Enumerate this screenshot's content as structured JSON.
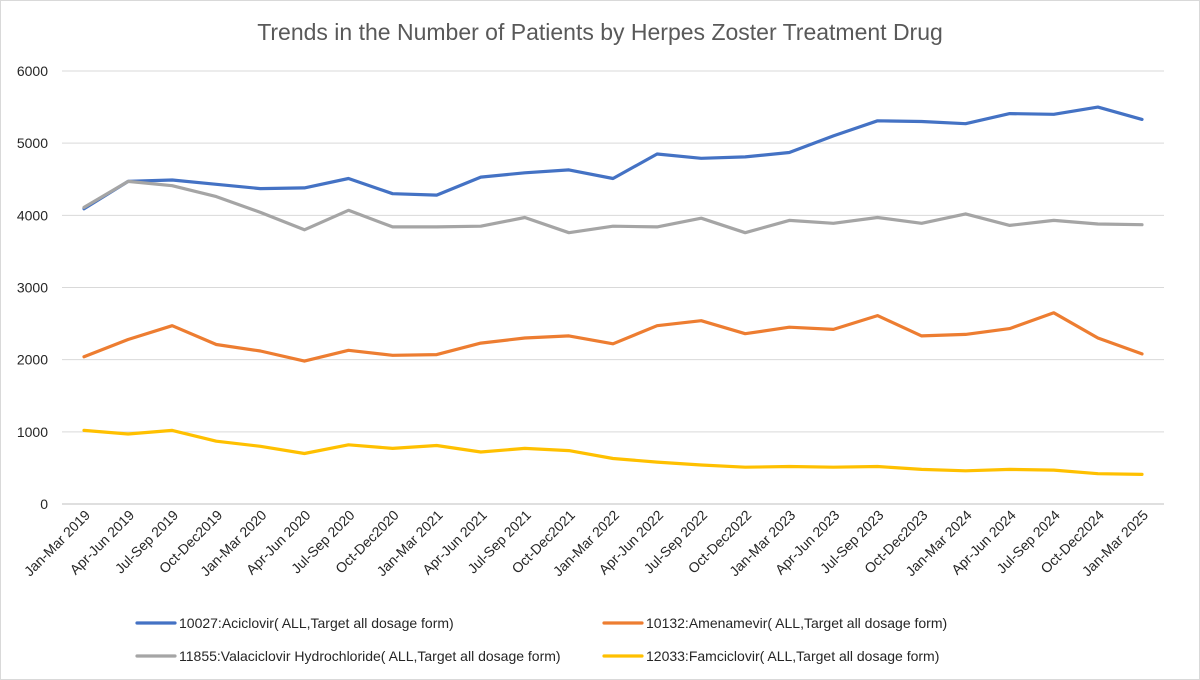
{
  "chart_data": {
    "type": "line",
    "title": "Trends in the Number of Patients by Herpes Zoster Treatment Drug",
    "xlabel": "",
    "ylabel": "",
    "ylim": [
      0,
      6000
    ],
    "yticks": [
      "0",
      "1000",
      "2000",
      "3000",
      "4000",
      "5000",
      "6000"
    ],
    "grid": true,
    "legend_position": "bottom",
    "categories": [
      "Jan-Mar 2019",
      "Apr-Jun 2019",
      "Jul-Sep 2019",
      "Oct-Dec2019",
      "Jan-Mar 2020",
      "Apr-Jun 2020",
      "Jul-Sep 2020",
      "Oct-Dec2020",
      "Jan-Mar 2021",
      "Apr-Jun 2021",
      "Jul-Sep 2021",
      "Oct-Dec2021",
      "Jan-Mar 2022",
      "Apr-Jun 2022",
      "Jul-Sep 2022",
      "Oct-Dec2022",
      "Jan-Mar 2023",
      "Apr-Jun 2023",
      "Jul-Sep 2023",
      "Oct-Dec2023",
      "Jan-Mar 2024",
      "Apr-Jun 2024",
      "Jul-Sep 2024",
      "Oct-Dec2024",
      "Jan-Mar 2025"
    ],
    "series": [
      {
        "name": "10027:Aciclovir( ALL,Target all dosage form)",
        "color": "#4472c4",
        "values": [
          4090,
          4470,
          4490,
          4430,
          4370,
          4380,
          4510,
          4300,
          4280,
          4530,
          4590,
          4630,
          4510,
          4850,
          4790,
          4810,
          4870,
          5100,
          5310,
          5300,
          5270,
          5410,
          5400,
          5500,
          5330
        ]
      },
      {
        "name": "10132:Amenamevir( ALL,Target all dosage form)",
        "color": "#ed7d31",
        "values": [
          2040,
          2280,
          2470,
          2210,
          2120,
          1980,
          2130,
          2060,
          2070,
          2230,
          2300,
          2330,
          2220,
          2470,
          2540,
          2360,
          2450,
          2420,
          2610,
          2330,
          2350,
          2430,
          2650,
          2300,
          2080
        ]
      },
      {
        "name": "11855:Valaciclovir Hydrochloride( ALL,Target all dosage form)",
        "color": "#a5a5a5",
        "values": [
          4110,
          4470,
          4410,
          4260,
          4040,
          3800,
          4070,
          3840,
          3840,
          3850,
          3970,
          3760,
          3850,
          3840,
          3960,
          3760,
          3930,
          3890,
          3970,
          3890,
          4020,
          3860,
          3930,
          3880,
          3870
        ]
      },
      {
        "name": "12033:Famciclovir( ALL,Target all dosage form)",
        "color": "#ffc000",
        "values": [
          1020,
          970,
          1020,
          870,
          800,
          700,
          820,
          770,
          810,
          720,
          770,
          740,
          630,
          580,
          540,
          510,
          520,
          510,
          520,
          480,
          460,
          480,
          470,
          420,
          410
        ]
      }
    ]
  }
}
